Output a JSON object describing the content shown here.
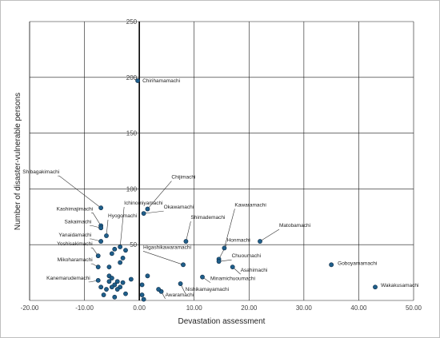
{
  "chart_data": {
    "type": "scatter",
    "title": "",
    "xlabel": "Devastation assessment",
    "ylabel": "Number of disaster-vulnerable persons",
    "xlim": [
      -20,
      50
    ],
    "ylim": [
      0,
      250
    ],
    "xticks": [
      -20,
      -10,
      0,
      10,
      20,
      30,
      40,
      50
    ],
    "yticks": [
      50,
      100,
      150,
      200,
      250
    ],
    "xtick_labels": [
      "-20.00",
      "-10.00",
      "0.00",
      "10.00",
      "20.00",
      "30.00",
      "40.00",
      "50.00"
    ],
    "ytick_labels": [
      "50",
      "100",
      "150",
      "200",
      "250"
    ],
    "grid": true,
    "legend": "none",
    "marker_color": "#1f5f8b",
    "series": [
      {
        "points": [
          {
            "x": -0.3,
            "y": 197,
            "label": "Chirihamamachi"
          },
          {
            "x": -7.0,
            "y": 83,
            "label": "Shibagakimachi"
          },
          {
            "x": 1.5,
            "y": 82,
            "label": "Chijimachi"
          },
          {
            "x": -7.0,
            "y": 67,
            "label": "Kashimajimachi"
          },
          {
            "x": -7.0,
            "y": 65,
            "label": "Sakaimachi"
          },
          {
            "x": -6.0,
            "y": 58,
            "label": "Hyogomachi"
          },
          {
            "x": 0.8,
            "y": 78,
            "label": "Okawamachi"
          },
          {
            "x": -7.0,
            "y": 53,
            "label": "Yanaidamachi"
          },
          {
            "x": -3.5,
            "y": 48,
            "label": "Ichinomiyamachi"
          },
          {
            "x": 8.5,
            "y": 53,
            "label": "Shimademachi"
          },
          {
            "x": 15.5,
            "y": 47,
            "label": "Kawaramachi"
          },
          {
            "x": 22.0,
            "y": 53,
            "label": "Matobamachi"
          },
          {
            "x": 14.5,
            "y": 37,
            "label": "Honmachi"
          },
          {
            "x": 14.5,
            "y": 35,
            "label": "Chuoumachi"
          },
          {
            "x": 17.0,
            "y": 30,
            "label": "Asahimachi"
          },
          {
            "x": 8.0,
            "y": 32,
            "label": "Higashikawaramachi"
          },
          {
            "x": 35.0,
            "y": 32,
            "label": "Goboyamamachi"
          },
          {
            "x": 43.0,
            "y": 12,
            "label": "Wakakusamachi"
          },
          {
            "x": 11.5,
            "y": 21,
            "label": "Minamichuoumachi"
          },
          {
            "x": 7.5,
            "y": 15,
            "label": "Nishikamayamachi"
          },
          {
            "x": 4.0,
            "y": 8,
            "label": "Awaramachi"
          },
          {
            "x": -7.5,
            "y": 40,
            "label": "Yoshisakimachi"
          },
          {
            "x": -7.5,
            "y": 30,
            "label": "Mikoharamachi"
          },
          {
            "x": -7.5,
            "y": 18,
            "label": "Kanemarudemachi"
          },
          {
            "x": -5.5,
            "y": 30,
            "label": ""
          },
          {
            "x": -4.5,
            "y": 46,
            "label": ""
          },
          {
            "x": -5.5,
            "y": 22,
            "label": ""
          },
          {
            "x": -5.0,
            "y": 20,
            "label": ""
          },
          {
            "x": -5.5,
            "y": 17,
            "label": ""
          },
          {
            "x": -4.0,
            "y": 17,
            "label": ""
          },
          {
            "x": -3.0,
            "y": 38,
            "label": ""
          },
          {
            "x": -3.5,
            "y": 34,
            "label": ""
          },
          {
            "x": -3.0,
            "y": 16,
            "label": ""
          },
          {
            "x": -4.5,
            "y": 14,
            "label": ""
          },
          {
            "x": -5.0,
            "y": 12,
            "label": ""
          },
          {
            "x": -3.5,
            "y": 12,
            "label": ""
          },
          {
            "x": -4.0,
            "y": 10,
            "label": ""
          },
          {
            "x": -6.0,
            "y": 10,
            "label": ""
          },
          {
            "x": -7.0,
            "y": 12,
            "label": ""
          },
          {
            "x": -6.5,
            "y": 5,
            "label": ""
          },
          {
            "x": -4.5,
            "y": 3,
            "label": ""
          },
          {
            "x": -2.5,
            "y": 6,
            "label": ""
          },
          {
            "x": -1.5,
            "y": 19,
            "label": ""
          },
          {
            "x": 1.5,
            "y": 22,
            "label": ""
          },
          {
            "x": 0.5,
            "y": 14,
            "label": ""
          },
          {
            "x": 0.5,
            "y": 5,
            "label": ""
          },
          {
            "x": 0.8,
            "y": 1,
            "label": ""
          },
          {
            "x": 3.5,
            "y": 10,
            "label": ""
          },
          {
            "x": -5.0,
            "y": 42,
            "label": ""
          },
          {
            "x": -2.5,
            "y": 45,
            "label": ""
          }
        ]
      }
    ]
  }
}
